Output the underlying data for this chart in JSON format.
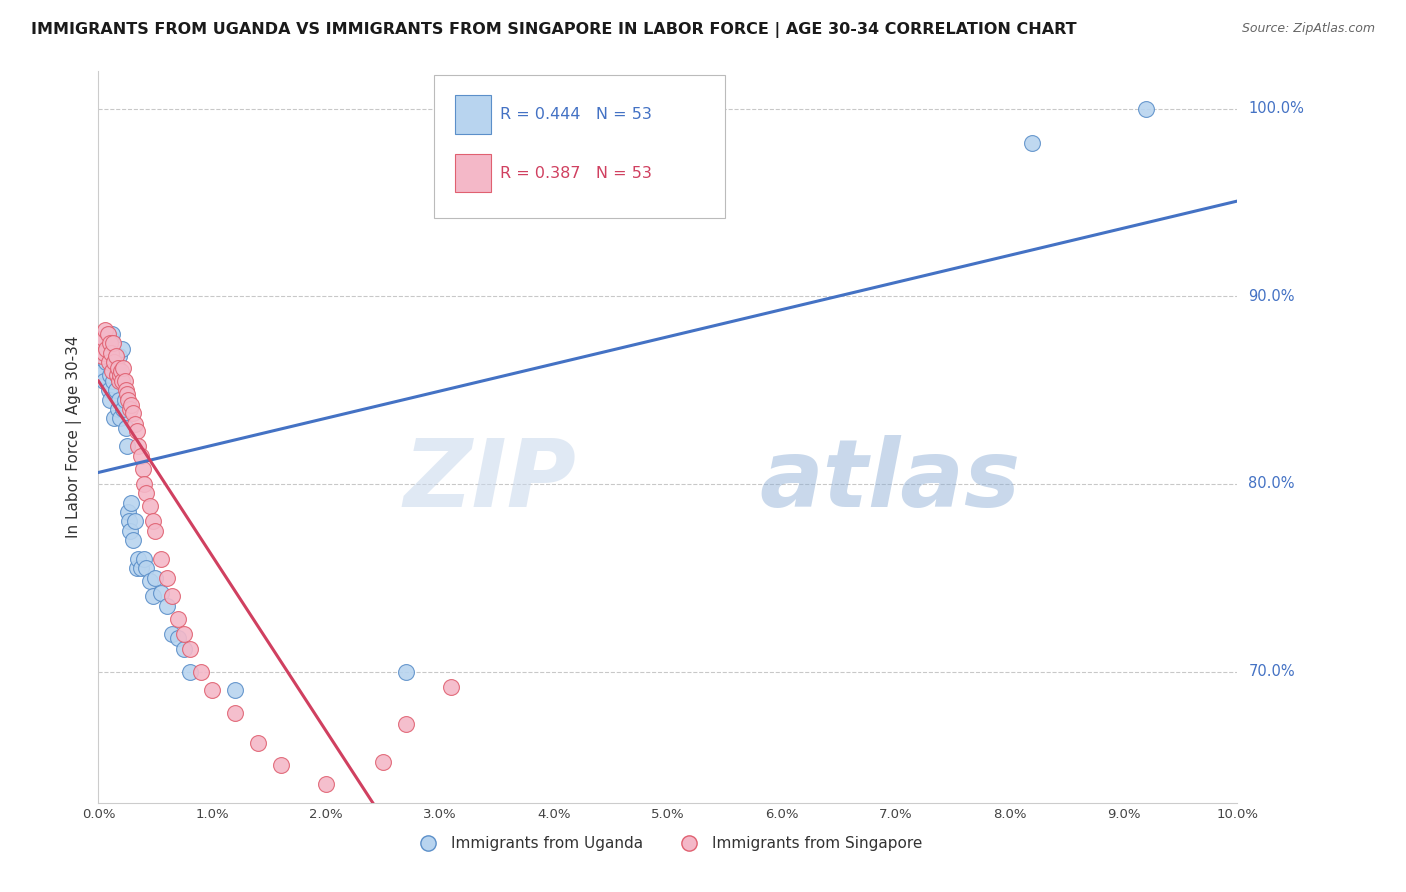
{
  "title": "IMMIGRANTS FROM UGANDA VS IMMIGRANTS FROM SINGAPORE IN LABOR FORCE | AGE 30-34 CORRELATION CHART",
  "source": "Source: ZipAtlas.com",
  "ylabel": "In Labor Force | Age 30-34",
  "xlim": [
    0.0,
    0.1
  ],
  "ylim": [
    0.63,
    1.02
  ],
  "r_uganda": 0.444,
  "n_uganda": 53,
  "r_singapore": 0.387,
  "n_singapore": 53,
  "color_uganda_fill": "#b8d4ef",
  "color_singapore_fill": "#f4b8c8",
  "color_uganda_edge": "#5b8fc9",
  "color_singapore_edge": "#e06070",
  "color_uganda_line": "#4472c4",
  "color_singapore_line": "#d04060",
  "legend_label_uganda": "Immigrants from Uganda",
  "legend_label_singapore": "Immigrants from Singapore",
  "watermark_zip": "ZIP",
  "watermark_atlas": "atlas",
  "xticks": [
    0.0,
    0.01,
    0.02,
    0.03,
    0.04,
    0.05,
    0.06,
    0.07,
    0.08,
    0.09,
    0.1
  ],
  "xtick_labels": [
    "0.0%",
    "1.0%",
    "2.0%",
    "3.0%",
    "4.0%",
    "5.0%",
    "6.0%",
    "7.0%",
    "8.0%",
    "9.0%",
    "10.0%"
  ],
  "ytick_vals": [
    0.7,
    0.8,
    0.9,
    1.0
  ],
  "ytick_labels": [
    "70.0%",
    "80.0%",
    "90.0%",
    "100.0%"
  ],
  "uganda_x": [
    0.0002,
    0.0003,
    0.0004,
    0.0005,
    0.0006,
    0.0007,
    0.0008,
    0.0008,
    0.0009,
    0.001,
    0.001,
    0.0011,
    0.0012,
    0.0012,
    0.0013,
    0.0014,
    0.0015,
    0.0015,
    0.0016,
    0.0017,
    0.0018,
    0.0018,
    0.0019,
    0.002,
    0.0021,
    0.0022,
    0.0023,
    0.0024,
    0.0025,
    0.0026,
    0.0027,
    0.0028,
    0.0029,
    0.003,
    0.0032,
    0.0034,
    0.0035,
    0.0037,
    0.004,
    0.0042,
    0.0045,
    0.0048,
    0.005,
    0.0055,
    0.006,
    0.0065,
    0.007,
    0.0075,
    0.008,
    0.012,
    0.027,
    0.082,
    0.092
  ],
  "uganda_y": [
    0.858,
    0.87,
    0.86,
    0.855,
    0.875,
    0.865,
    0.87,
    0.88,
    0.85,
    0.858,
    0.845,
    0.878,
    0.865,
    0.88,
    0.855,
    0.835,
    0.85,
    0.862,
    0.858,
    0.84,
    0.845,
    0.868,
    0.835,
    0.855,
    0.872,
    0.84,
    0.845,
    0.83,
    0.82,
    0.785,
    0.78,
    0.775,
    0.79,
    0.77,
    0.78,
    0.755,
    0.76,
    0.755,
    0.76,
    0.755,
    0.748,
    0.74,
    0.75,
    0.742,
    0.735,
    0.72,
    0.718,
    0.712,
    0.7,
    0.69,
    0.7,
    0.982,
    1.0
  ],
  "singapore_x": [
    0.0002,
    0.0003,
    0.0004,
    0.0005,
    0.0006,
    0.0007,
    0.0008,
    0.0009,
    0.001,
    0.0011,
    0.0012,
    0.0013,
    0.0014,
    0.0015,
    0.0016,
    0.0017,
    0.0018,
    0.0019,
    0.002,
    0.0021,
    0.0022,
    0.0023,
    0.0024,
    0.0025,
    0.0026,
    0.0028,
    0.0029,
    0.003,
    0.0032,
    0.0034,
    0.0035,
    0.0037,
    0.0039,
    0.004,
    0.0042,
    0.0045,
    0.0048,
    0.005,
    0.0055,
    0.006,
    0.0065,
    0.007,
    0.0075,
    0.008,
    0.009,
    0.01,
    0.012,
    0.014,
    0.016,
    0.02,
    0.025,
    0.027,
    0.031
  ],
  "singapore_y": [
    0.875,
    0.868,
    0.878,
    0.87,
    0.882,
    0.872,
    0.88,
    0.865,
    0.875,
    0.87,
    0.86,
    0.875,
    0.865,
    0.868,
    0.858,
    0.862,
    0.855,
    0.858,
    0.86,
    0.855,
    0.862,
    0.855,
    0.85,
    0.848,
    0.845,
    0.84,
    0.842,
    0.838,
    0.832,
    0.828,
    0.82,
    0.815,
    0.808,
    0.8,
    0.795,
    0.788,
    0.78,
    0.775,
    0.76,
    0.75,
    0.74,
    0.728,
    0.72,
    0.712,
    0.7,
    0.69,
    0.678,
    0.662,
    0.65,
    0.64,
    0.652,
    0.672,
    0.692
  ]
}
